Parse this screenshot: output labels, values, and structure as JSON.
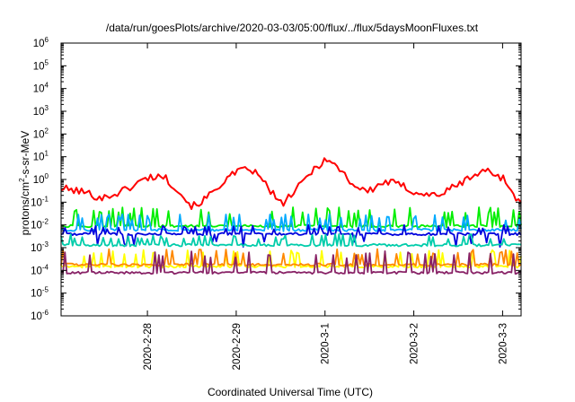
{
  "chart_data": {
    "type": "line",
    "title": "/data/run/goesPlots/archive/2020-03-03/05:00/flux/../flux/5daysMoonFluxes.txt",
    "xlabel": "Coordinated Universal Time (UTC)",
    "ylabel": {
      "base": "protons/cm",
      "sup": "2",
      "rest": "-s-sr-MeV"
    },
    "y_scale": "log",
    "ylim": [
      1e-06,
      1000000.0
    ],
    "y_ticks": [
      {
        "value": 1e-06,
        "base": "10",
        "exp": "-6"
      },
      {
        "value": 1e-05,
        "base": "10",
        "exp": "-5"
      },
      {
        "value": 0.0001,
        "base": "10",
        "exp": "-4"
      },
      {
        "value": 0.001,
        "base": "10",
        "exp": "-3"
      },
      {
        "value": 0.01,
        "base": "10",
        "exp": "-2"
      },
      {
        "value": 0.1,
        "base": "10",
        "exp": "-1"
      },
      {
        "value": 1,
        "base": "10",
        "exp": "0"
      },
      {
        "value": 10,
        "base": "10",
        "exp": "1"
      },
      {
        "value": 100,
        "base": "10",
        "exp": "2"
      },
      {
        "value": 1000,
        "base": "10",
        "exp": "3"
      },
      {
        "value": 10000,
        "base": "10",
        "exp": "4"
      },
      {
        "value": 100000,
        "base": "10",
        "exp": "5"
      },
      {
        "value": 1000000,
        "base": "10",
        "exp": "6"
      }
    ],
    "xlim": [
      "2020-02-27T00:40",
      "2020-03-03T05:00"
    ],
    "x_ticks": [
      "2020-2-28",
      "2020-2-29",
      "2020-3-1",
      "2020-3-2",
      "2020-3-3"
    ],
    "grid": false,
    "legend": "none",
    "series": [
      {
        "color": "#ff0000",
        "type": "trend",
        "min": 0.05,
        "max": 9,
        "points": [
          [
            "2020-02-27T00:40",
            0.4
          ],
          [
            "2020-02-27T06:00",
            0.3
          ],
          [
            "2020-02-27T12:00",
            0.15
          ],
          [
            "2020-02-27T18:00",
            0.35
          ],
          [
            "2020-02-28T00:00",
            1.2
          ],
          [
            "2020-02-28T04:00",
            1.5
          ],
          [
            "2020-02-28T08:00",
            0.4
          ],
          [
            "2020-02-28T12:00",
            0.06
          ],
          [
            "2020-02-28T16:00",
            0.15
          ],
          [
            "2020-02-28T20:00",
            0.7
          ],
          [
            "2020-02-29T00:00",
            2.0
          ],
          [
            "2020-02-29T04:00",
            3.0
          ],
          [
            "2020-02-29T08:00",
            0.6
          ],
          [
            "2020-02-29T12:00",
            0.08
          ],
          [
            "2020-02-29T16:00",
            0.3
          ],
          [
            "2020-02-29T20:00",
            2.0
          ],
          [
            "2020-03-01T00:00",
            8.0
          ],
          [
            "2020-03-01T04:00",
            3.0
          ],
          [
            "2020-03-01T08:00",
            0.5
          ],
          [
            "2020-03-01T12:00",
            0.3
          ],
          [
            "2020-03-01T16:00",
            0.8
          ],
          [
            "2020-03-01T20:00",
            0.6
          ],
          [
            "2020-03-02T00:00",
            0.3
          ],
          [
            "2020-03-02T04:00",
            0.2
          ],
          [
            "2020-03-02T08:00",
            0.25
          ],
          [
            "2020-03-02T12:00",
            0.6
          ],
          [
            "2020-03-02T16:00",
            1.5
          ],
          [
            "2020-03-02T20:00",
            2.5
          ],
          [
            "2020-03-03T00:00",
            1.2
          ],
          [
            "2020-03-03T05:00",
            0.08
          ]
        ]
      },
      {
        "color": "#00ee00",
        "type": "spiky",
        "baseline": 0.009,
        "peak": 0.06
      },
      {
        "color": "#00aaff",
        "type": "spiky",
        "baseline": 0.006,
        "peak": 0.03
      },
      {
        "color": "#0000dd",
        "type": "spiky",
        "baseline": 0.004,
        "low": 0.001,
        "peak": 0.01
      },
      {
        "color": "#00ccaa",
        "type": "spiky",
        "baseline": 0.0013,
        "peak": 0.004
      },
      {
        "color": "#ff8800",
        "type": "spiky",
        "baseline": 0.00018,
        "peak": 0.0009
      },
      {
        "color": "#ffff00",
        "type": "spiky",
        "baseline": 0.00015,
        "peak": 0.0008
      },
      {
        "color": "#882266",
        "type": "spiky",
        "baseline": 8e-05,
        "peak": 0.0007
      }
    ]
  }
}
